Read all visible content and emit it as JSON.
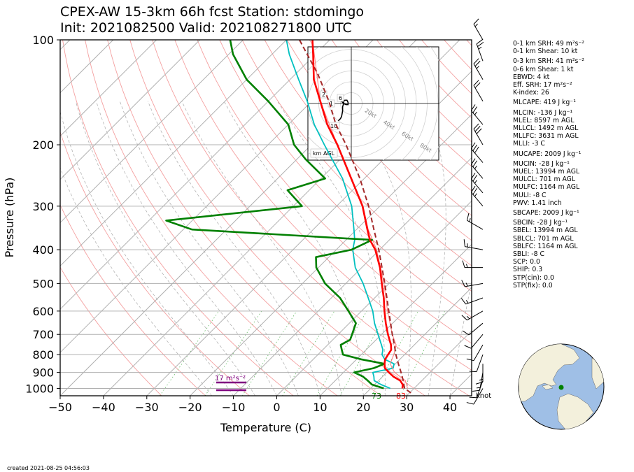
{
  "title": {
    "line1": "CPEX-AW 15-3km  66h fcst  Station: stdomingo",
    "line2": "Init: 2021082500  Valid: 202108271800 UTC"
  },
  "axes": {
    "xlabel": "Temperature (C)",
    "ylabel": "Pressure (hPa)",
    "barb_unit": "knot"
  },
  "chart_data": {
    "type": "skew-t",
    "xlim": [
      -50,
      45
    ],
    "ylim": [
      1050,
      100
    ],
    "y_scale": "log",
    "grid": true,
    "x_ticks": [
      -50,
      -40,
      -30,
      -20,
      -10,
      0,
      10,
      20,
      30,
      40
    ],
    "y_ticks": [
      100,
      200,
      300,
      400,
      500,
      600,
      700,
      800,
      900,
      1000
    ],
    "series": [
      {
        "key": "temperature",
        "color": "#ff0000",
        "points": [
          [
            1000,
            27.3
          ],
          [
            975,
            26.5
          ],
          [
            950,
            25
          ],
          [
            925,
            22.5
          ],
          [
            900,
            20.5
          ],
          [
            875,
            18.6
          ],
          [
            850,
            17.5
          ],
          [
            825,
            16.6
          ],
          [
            800,
            16.2
          ],
          [
            775,
            15.8
          ],
          [
            750,
            14.6
          ],
          [
            700,
            11.5
          ],
          [
            650,
            8.4
          ],
          [
            600,
            5.3
          ],
          [
            550,
            2.1
          ],
          [
            500,
            -1.7
          ],
          [
            450,
            -5.8
          ],
          [
            400,
            -11
          ],
          [
            375,
            -14.5
          ],
          [
            350,
            -17.5
          ],
          [
            300,
            -24
          ],
          [
            250,
            -33
          ],
          [
            200,
            -44
          ],
          [
            175,
            -51
          ],
          [
            150,
            -58
          ],
          [
            130,
            -64.5
          ],
          [
            110,
            -70.5
          ],
          [
            100,
            -74
          ]
        ]
      },
      {
        "key": "virtual-temperature",
        "color": "#ff8080",
        "points": [
          [
            1000,
            28.5
          ],
          [
            950,
            26.2
          ],
          [
            900,
            21.8
          ],
          [
            850,
            18.8
          ],
          [
            800,
            17.5
          ],
          [
            750,
            15.8
          ],
          [
            700,
            12.5
          ],
          [
            600,
            6
          ],
          [
            500,
            -1.2
          ],
          [
            400,
            -10.7
          ],
          [
            350,
            -17.3
          ],
          [
            300,
            -23.9
          ],
          [
            250,
            -32.9
          ],
          [
            200,
            -44
          ],
          [
            150,
            -58
          ],
          [
            100,
            -74
          ]
        ]
      },
      {
        "key": "dewpoint",
        "color": "#008000",
        "points": [
          [
            1000,
            23
          ],
          [
            975,
            19.4
          ],
          [
            950,
            17.5
          ],
          [
            925,
            15.5
          ],
          [
            900,
            12.5
          ],
          [
            875,
            16
          ],
          [
            850,
            17.5
          ],
          [
            825,
            11
          ],
          [
            800,
            5.8
          ],
          [
            775,
            4.4
          ],
          [
            750,
            3
          ],
          [
            725,
            4
          ],
          [
            700,
            3.2
          ],
          [
            650,
            1.5
          ],
          [
            600,
            -3
          ],
          [
            550,
            -8
          ],
          [
            500,
            -14.8
          ],
          [
            450,
            -20.5
          ],
          [
            420,
            -23
          ],
          [
            400,
            -16.5
          ],
          [
            375,
            -14
          ],
          [
            350,
            -58
          ],
          [
            330,
            -66
          ],
          [
            300,
            -38
          ],
          [
            270,
            -45
          ],
          [
            250,
            -39
          ],
          [
            220,
            -48
          ],
          [
            200,
            -54
          ],
          [
            175,
            -60
          ],
          [
            150,
            -70
          ],
          [
            130,
            -80
          ],
          [
            110,
            -89
          ],
          [
            100,
            -93
          ]
        ]
      },
      {
        "key": "wet-bulb",
        "color": "#00c0c0",
        "points": [
          [
            1000,
            24.5
          ],
          [
            975,
            21.5
          ],
          [
            950,
            19
          ],
          [
            925,
            18
          ],
          [
            900,
            16.8
          ],
          [
            875,
            20.5
          ],
          [
            850,
            19.7
          ],
          [
            825,
            16.5
          ],
          [
            800,
            14.8
          ],
          [
            775,
            13.9
          ],
          [
            750,
            12.4
          ],
          [
            700,
            9.2
          ],
          [
            650,
            5.8
          ],
          [
            600,
            2.6
          ],
          [
            550,
            -1.5
          ],
          [
            500,
            -6
          ],
          [
            450,
            -11.5
          ],
          [
            400,
            -16.2
          ],
          [
            375,
            -18
          ],
          [
            350,
            -20.6
          ],
          [
            300,
            -26.5
          ],
          [
            250,
            -35
          ],
          [
            200,
            -47
          ],
          [
            175,
            -54
          ],
          [
            150,
            -61
          ],
          [
            130,
            -68
          ],
          [
            110,
            -76
          ],
          [
            100,
            -80
          ]
        ]
      },
      {
        "key": "parcel",
        "color": "#a52a2a",
        "dashed": true,
        "points": [
          [
            1030,
            30.3
          ],
          [
            1000,
            27.8
          ],
          [
            950,
            25.7
          ],
          [
            900,
            23.3
          ],
          [
            850,
            20.7
          ],
          [
            800,
            18
          ],
          [
            750,
            15.4
          ],
          [
            700,
            12.5
          ],
          [
            600,
            6.3
          ],
          [
            500,
            -1
          ],
          [
            400,
            -10.2
          ],
          [
            350,
            -16
          ],
          [
            300,
            -22.6
          ],
          [
            250,
            -31
          ],
          [
            200,
            -42
          ],
          [
            175,
            -49
          ],
          [
            150,
            -56
          ],
          [
            125,
            -65
          ],
          [
            100,
            -77
          ]
        ]
      }
    ],
    "surface_labels": {
      "dewpoint": "73",
      "temperature": "83"
    },
    "srh_annotation": "17 m$^2$s$^{-2}$",
    "wind_barbs_kt": [
      {
        "p": 100,
        "spd": 15,
        "dir": 330
      },
      {
        "p": 115,
        "spd": 25,
        "dir": 340
      },
      {
        "p": 130,
        "spd": 25,
        "dir": 330
      },
      {
        "p": 150,
        "spd": 20,
        "dir": 330
      },
      {
        "p": 175,
        "spd": 25,
        "dir": 320
      },
      {
        "p": 200,
        "spd": 30,
        "dir": 330
      },
      {
        "p": 225,
        "spd": 30,
        "dir": 320
      },
      {
        "p": 250,
        "spd": 25,
        "dir": 320
      },
      {
        "p": 275,
        "spd": 25,
        "dir": 320
      },
      {
        "p": 300,
        "spd": 25,
        "dir": 320
      },
      {
        "p": 350,
        "spd": 15,
        "dir": 300
      },
      {
        "p": 400,
        "spd": 15,
        "dir": 280
      },
      {
        "p": 450,
        "spd": 15,
        "dir": 270
      },
      {
        "p": 500,
        "spd": 15,
        "dir": 260
      },
      {
        "p": 550,
        "spd": 15,
        "dir": 250
      },
      {
        "p": 600,
        "spd": 15,
        "dir": 240
      },
      {
        "p": 650,
        "spd": 10,
        "dir": 230
      },
      {
        "p": 700,
        "spd": 10,
        "dir": 220
      },
      {
        "p": 750,
        "spd": 10,
        "dir": 210
      },
      {
        "p": 800,
        "spd": 10,
        "dir": 200
      },
      {
        "p": 850,
        "spd": 15,
        "dir": 180
      },
      {
        "p": 900,
        "spd": 15,
        "dir": 190
      },
      {
        "p": 950,
        "spd": 10,
        "dir": 200
      },
      {
        "p": 1000,
        "spd": 10,
        "dir": 210
      }
    ],
    "hodograph": {
      "ring_labels": [
        "20kt",
        "40kt",
        "60kt",
        "80kt"
      ],
      "height_labels": [
        "2",
        "1",
        "6",
        "10"
      ],
      "legend": "km AGL",
      "trace_kt": [
        [
          -12,
          -16
        ],
        [
          -10,
          -14
        ],
        [
          -9,
          -12
        ],
        [
          -8,
          -7
        ],
        [
          -8,
          -3
        ],
        [
          -7,
          0
        ],
        [
          -7,
          2
        ],
        [
          -6,
          3
        ],
        [
          -4,
          3
        ],
        [
          -3,
          1
        ],
        [
          -3,
          -1
        ],
        [
          -5,
          -1
        ],
        [
          -7,
          0
        ],
        [
          -8,
          1
        ],
        [
          -9,
          2
        ],
        [
          -9,
          3
        ],
        [
          -8,
          4
        ],
        [
          -7,
          4
        ]
      ]
    }
  },
  "indices": [
    "0-1 km SRH: 49 m$^2$s$^{-2}$",
    "0-1 km Shear: 10 kt",
    "0-3 km SRH: 41 m$^2$s$^{-2}$",
    "0-6 km Shear: 1 kt",
    "EBWD: 4 kt",
    "Eff. SRH: 17 m$^2$s$^{-2}$",
    "K-index: 26",
    "MLCAPE: 419 J kg$^{-1}$",
    "MLCIN: -136 J kg$^{-1}$",
    "MLEL: 8597 m AGL",
    "MLLCL: 1492 m AGL",
    "MLLFC: 3631 m AGL",
    "MLLI: -3 C",
    "MUCAPE: 2009 J kg$^{-1}$",
    "MUCIN: -28 J kg$^{-1}$",
    "MUEL: 13994 m AGL",
    "MULCL: 701 m AGL",
    "MULFC: 1164 m AGL",
    "MULI: -8 C",
    "PWV: 1.41 inch",
    "SBCAPE: 2009 J kg$^{-1}$",
    "SBCIN: -28 J kg$^{-1}$",
    "SBEL: 13994 m AGL",
    "SBLCL: 701 m AGL",
    "SBLFC: 1164 m AGL",
    "SBLI: -8 C",
    "SCP: 0.0",
    "SHIP: 0.3",
    "STP(cin): 0.0",
    "STP(fix): 0.0"
  ],
  "created": "created 2021-08-25 04:56:03",
  "colors": {
    "ocean": "#9fbfe6",
    "land": "#f3f0dc",
    "station": "#008000",
    "srh": "#800080"
  }
}
